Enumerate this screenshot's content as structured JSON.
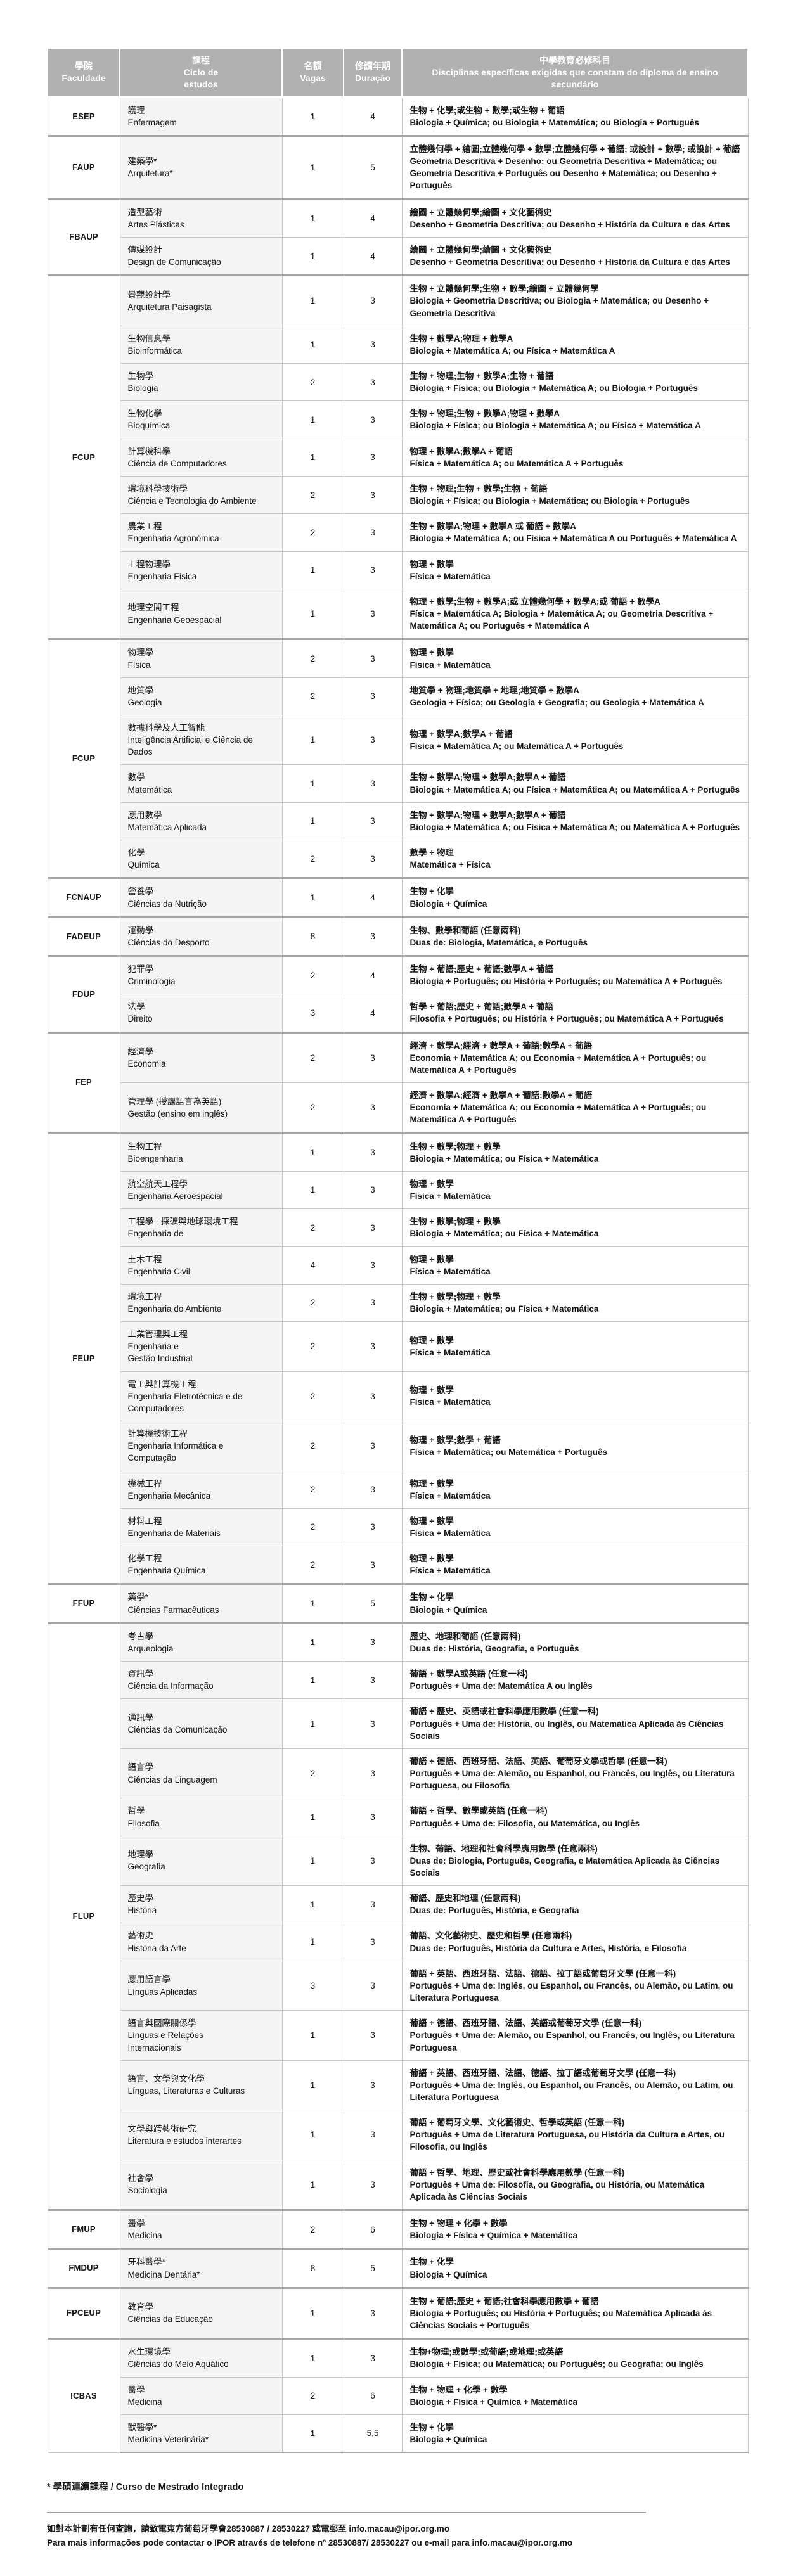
{
  "colors": {
    "header_bg": "#b1b1b1",
    "header_text": "#ffffff",
    "course_col_bg": "#f4f4f4",
    "row_border": "#c6c6c6",
    "group_border": "#a6a6a6"
  },
  "table": {
    "columns": [
      {
        "zh": "學院",
        "pt": "Faculdade"
      },
      {
        "zh": "課程",
        "pt": "Ciclo de\nestudos"
      },
      {
        "zh": "名額",
        "pt": "Vagas"
      },
      {
        "zh": "修讀年期",
        "pt": "Duração"
      },
      {
        "zh": "中學教育必修科目",
        "pt": "Disciplinas específicas exigidas que constam do diploma de ensino secundário"
      }
    ],
    "groups": [
      {
        "faculty": "ESEP",
        "rows": [
          {
            "zh": "護理",
            "pt": "Enfermagem",
            "vagas": "1",
            "dur": "4",
            "req_zh": "生物 + 化學;或生物 + 數學;或生物 + 葡語",
            "req_pt": "Biologia + Química; ou Biologia + Matemática; ou Biologia + Português"
          }
        ]
      },
      {
        "faculty": "FAUP",
        "rows": [
          {
            "zh": "建築學*",
            "pt": "Arquitetura*",
            "vagas": "1",
            "dur": "5",
            "req_zh": "立體幾何學 + 繪圖;立體幾何學 + 數學;立體幾何學 + 葡語; 或設計 + 數學; 或設計 + 葡語",
            "req_pt": "Geometria Descritiva + Desenho; ou Geometria Descritiva + Matemática; ou Geometria Descritiva + Português ou Desenho + Matemática; ou Desenho + Português"
          }
        ]
      },
      {
        "faculty": "FBAUP",
        "rows": [
          {
            "zh": "造型藝術",
            "pt": "Artes Plásticas",
            "vagas": "1",
            "dur": "4",
            "req_zh": "繪圖 + 立體幾何學;繪圖 + 文化藝術史",
            "req_pt": "Desenho + Geometria Descritiva; ou Desenho + História da Cultura e das Artes"
          },
          {
            "zh": "傳媒設計",
            "pt": "Design de Comunicação",
            "vagas": "1",
            "dur": "4",
            "req_zh": "繪圖 + 立體幾何學;繪圖 + 文化藝術史",
            "req_pt": "Desenho + Geometria Descritiva; ou Desenho + História da Cultura e das Artes"
          }
        ]
      },
      {
        "faculty": "FCUP",
        "rows": [
          {
            "zh": "景觀設計學",
            "pt": "Arquitetura Paisagista",
            "vagas": "1",
            "dur": "3",
            "req_zh": "生物 + 立體幾何學;生物 + 數學;繪圖 + 立體幾何學",
            "req_pt": "Biologia + Geometria Descritiva; ou Biologia + Matemática; ou Desenho + Geometria Descritiva"
          },
          {
            "zh": "生物信息學",
            "pt": "Bioinformática",
            "vagas": "1",
            "dur": "3",
            "req_zh": "生物 + 數學A;物理 + 數學A",
            "req_pt": "Biologia + Matemática A; ou Física + Matemática A"
          },
          {
            "zh": "生物學",
            "pt": "Biologia",
            "vagas": "2",
            "dur": "3",
            "req_zh": "生物 + 物理;生物 + 數學A;生物 + 葡語",
            "req_pt": "Biologia + Física; ou Biologia + Matemática A; ou Biologia + Português"
          },
          {
            "zh": "生物化學",
            "pt": "Bioquímica",
            "vagas": "1",
            "dur": "3",
            "req_zh": "生物 + 物理;生物 + 數學A;物理 + 數學A",
            "req_pt": "Biologia + Física; ou Biologia + Matemática A; ou Física + Matemática A"
          },
          {
            "zh": "計算機科學",
            "pt": "Ciência de Computadores",
            "vagas": "1",
            "dur": "3",
            "req_zh": "物理 + 數學A;數學A + 葡語",
            "req_pt": "Física + Matemática A; ou Matemática A + Português"
          },
          {
            "zh": "環境科學技術學",
            "pt": "Ciência e Tecnologia do Ambiente",
            "vagas": "2",
            "dur": "3",
            "req_zh": "生物 + 物理;生物 + 數學;生物 + 葡語",
            "req_pt": "Biologia + Física; ou Biologia + Matemática; ou Biologia + Português"
          },
          {
            "zh": "農業工程",
            "pt": "Engenharia Agronómica",
            "vagas": "2",
            "dur": "3",
            "req_zh": "生物 + 數學A;物理 + 數學A 或 葡語 + 數學A",
            "req_pt": "Biologia + Matemática A; ou Física + Matemática A ou Português + Matemática A"
          },
          {
            "zh": "工程物理學",
            "pt": "Engenharia Física",
            "vagas": "1",
            "dur": "3",
            "req_zh": "物理 + 數學",
            "req_pt": "Física + Matemática"
          },
          {
            "zh": "地理空間工程",
            "pt": "Engenharia Geoespacial",
            "vagas": "1",
            "dur": "3",
            "req_zh": "物理 + 數學;生物 + 數學A;或 立體幾何學 + 數學A;或 葡語 + 數學A",
            "req_pt": "Física + Matemática A; Biologia + Matemática A; ou Geometria Descritiva + Matemática A; ou Português + Matemática A"
          }
        ]
      },
      {
        "faculty": "FCUP",
        "rows": [
          {
            "zh": "物理學",
            "pt": "Física",
            "vagas": "2",
            "dur": "3",
            "req_zh": "物理 + 數學",
            "req_pt": "Física + Matemática"
          },
          {
            "zh": "地質學",
            "pt": "Geologia",
            "vagas": "2",
            "dur": "3",
            "req_zh": "地質學 + 物理;地質學 + 地理;地質學 + 數學A",
            "req_pt": "Geologia + Física; ou Geologia + Geografia; ou Geologia + Matemática A"
          },
          {
            "zh": "數據科學及人工智能",
            "pt": "Inteligência Artificial e Ciência de Dados",
            "vagas": "1",
            "dur": "3",
            "req_zh": "物理 + 數學A;數學A + 葡語",
            "req_pt": "Física + Matemática A; ou Matemática A + Português"
          },
          {
            "zh": "數學",
            "pt": "Matemática",
            "vagas": "1",
            "dur": "3",
            "req_zh": "生物 + 數學A;物理 + 數學A;數學A + 葡語",
            "req_pt": "Biologia + Matemática A; ou Física + Matemática A; ou  Matemática A + Português"
          },
          {
            "zh": "應用數學",
            "pt": "Matemática Aplicada",
            "vagas": "1",
            "dur": "3",
            "req_zh": "生物 + 數學A;物理 + 數學A;數學A + 葡語",
            "req_pt": "Biologia + Matemática A; ou Física + Matemática A; ou  Matemática A + Português"
          },
          {
            "zh": "化學",
            "pt": "Química",
            "vagas": "2",
            "dur": "3",
            "req_zh": "數學 + 物理",
            "req_pt": "Matemática + Física"
          }
        ]
      },
      {
        "faculty": "FCNAUP",
        "rows": [
          {
            "zh": "營養學",
            "pt": "Ciências da Nutrição",
            "vagas": "1",
            "dur": "4",
            "req_zh": "生物 + 化學",
            "req_pt": "Biologia + Química"
          }
        ]
      },
      {
        "faculty": "FADEUP",
        "rows": [
          {
            "zh": "運動學",
            "pt": "Ciências do Desporto",
            "vagas": "8",
            "dur": "3",
            "req_zh": "生物、數學和葡語 (任意兩科)",
            "req_pt": "Duas de: Biologia, Matemática, e Português"
          }
        ]
      },
      {
        "faculty": "FDUP",
        "rows": [
          {
            "zh": "犯罪學",
            "pt": "Criminologia",
            "vagas": "2",
            "dur": "4",
            "req_zh": "生物 + 葡語;歷史 + 葡語;數學A + 葡語",
            "req_pt": "Biologia + Português; ou História  + Português; ou Matemática A + Português"
          },
          {
            "zh": "法學",
            "pt": "Direito",
            "vagas": "3",
            "dur": "4",
            "req_zh": "哲學 + 葡語;歷史 + 葡語;數學A + 葡語",
            "req_pt": "Filosofia + Português; ou História + Português; ou Matemática A + Português"
          }
        ]
      },
      {
        "faculty": "FEP",
        "rows": [
          {
            "zh": "經濟學",
            "pt": "Economia",
            "vagas": "2",
            "dur": "3",
            "req_zh": "經濟 + 數學A;經濟 + 數學A + 葡語;數學A + 葡語",
            "req_pt": "Economia + Matemática A; ou Economia + Matemática A + Português; ou Matemática A + Português"
          },
          {
            "zh": "管理學 (授課語言為英語)",
            "pt": "Gestão (ensino em inglês)",
            "vagas": "2",
            "dur": "3",
            "req_zh": "經濟 + 數學A;經濟 + 數學A + 葡語;數學A + 葡語",
            "req_pt": "Economia + Matemática A; ou Economia + Matemática A + Português; ou Matemática A + Português"
          }
        ]
      },
      {
        "faculty": "FEUP",
        "rows": [
          {
            "zh": "生物工程",
            "pt": "Bioengenharia",
            "vagas": "1",
            "dur": "3",
            "req_zh": "生物 + 數學;物理 + 數學",
            "req_pt": "Biologia + Matemática; ou Física + Matemática"
          },
          {
            "zh": "航空航天工程學",
            "pt": "Engenharia Aeroespacial",
            "vagas": "1",
            "dur": "3",
            "req_zh": "物理 + 數學",
            "req_pt": "Física + Matemática"
          },
          {
            "zh": "工程學 - 採礦與地球環境工程",
            "pt": "Engenharia de",
            "vagas": "2",
            "dur": "3",
            "req_zh": "生物 + 數學;物理 + 數學",
            "req_pt": "Biologia + Matemática; ou Física + Matemática"
          },
          {
            "zh": "土木工程",
            "pt": "Engenharia Civil",
            "vagas": "4",
            "dur": "3",
            "req_zh": "物理 + 數學",
            "req_pt": "Física + Matemática"
          },
          {
            "zh": "環境工程",
            "pt": "Engenharia do Ambiente",
            "vagas": "2",
            "dur": "3",
            "req_zh": "生物 + 數學;物理 + 數學",
            "req_pt": "Biologia + Matemática; ou Física + Matemática"
          },
          {
            "zh": "工業管理與工程",
            "pt": "Engenharia e\nGestão Industrial",
            "vagas": "2",
            "dur": "3",
            "req_zh": "物理 + 數學",
            "req_pt": "Física + Matemática"
          },
          {
            "zh": "電工與計算機工程",
            "pt": "Engenharia Eletrotécnica e de Computadores",
            "vagas": "2",
            "dur": "3",
            "req_zh": "物理 + 數學",
            "req_pt": "Física + Matemática"
          },
          {
            "zh": "計算機技術工程",
            "pt": "Engenharia Informática e Computação",
            "vagas": "2",
            "dur": "3",
            "req_zh": "物理 + 數學;數學 + 葡語",
            "req_pt": "Física + Matemática; ou Matemática + Português"
          },
          {
            "zh": "機械工程",
            "pt": "Engenharia Mecânica",
            "vagas": "2",
            "dur": "3",
            "req_zh": "物理 + 數學",
            "req_pt": "Física + Matemática"
          },
          {
            "zh": "材料工程",
            "pt": "Engenharia de Materiais",
            "vagas": "2",
            "dur": "3",
            "req_zh": "物理 + 數學",
            "req_pt": "Física + Matemática"
          },
          {
            "zh": "化學工程",
            "pt": "Engenharia Química",
            "vagas": "2",
            "dur": "3",
            "req_zh": "物理 + 數學",
            "req_pt": "Física + Matemática"
          }
        ]
      },
      {
        "faculty": "FFUP",
        "rows": [
          {
            "zh": "藥學*",
            "pt": "Ciências Farmacêuticas",
            "vagas": "1",
            "dur": "5",
            "req_zh": "生物 + 化學",
            "req_pt": "Biologia + Química"
          }
        ]
      },
      {
        "faculty": "FLUP",
        "rows": [
          {
            "zh": "考古學",
            "pt": "Arqueologia",
            "vagas": "1",
            "dur": "3",
            "req_zh": "歷史、地理和葡語 (任意兩科)",
            "req_pt": "Duas de: História, Geografia, e Português"
          },
          {
            "zh": "資訊學",
            "pt": "Ciência da Informação",
            "vagas": "1",
            "dur": "3",
            "req_zh": "葡語 + 數學A或英語 (任意一科)",
            "req_pt": "Português + Uma de: Matemática A ou Inglês"
          },
          {
            "zh": "通訊學",
            "pt": "Ciências da Comunicação",
            "vagas": "1",
            "dur": "3",
            "req_zh": "葡語 + 歷史、英語或社會科學應用數學 (任意一科)",
            "req_pt": "Português + Uma de: História, ou Inglês, ou Matemática Aplicada às Ciências Sociais"
          },
          {
            "zh": "語言學",
            "pt": "Ciências da Linguagem",
            "vagas": "2",
            "dur": "3",
            "req_zh": "葡語 + 德語、西班牙語、法語、英語、葡萄牙文學或哲學 (任意一科)",
            "req_pt": "Português + Uma de: Alemão, ou Espanhol, ou Francês, ou Inglês, ou Literatura Portuguesa, ou Filosofia"
          },
          {
            "zh": "哲學",
            "pt": "Filosofia",
            "vagas": "1",
            "dur": "3",
            "req_zh": "葡語 + 哲學、數學或英語 (任意一科)",
            "req_pt": "Português + Uma de: Filosofia, ou Matemática, ou Inglês"
          },
          {
            "zh": "地理學",
            "pt": "Geografia",
            "vagas": "1",
            "dur": "3",
            "req_zh": "生物、葡語、地理和社會科學應用數學 (任意兩科)",
            "req_pt": "Duas de: Biologia, Português, Geografia, e Matemática Aplicada às Ciências Sociais"
          },
          {
            "zh": "歷史學",
            "pt": "História",
            "vagas": "1",
            "dur": "3",
            "req_zh": "葡語、歷史和地理 (任意兩科)",
            "req_pt": "Duas de: Português, História, e Geografia"
          },
          {
            "zh": "藝術史",
            "pt": "História da Arte",
            "vagas": "1",
            "dur": "3",
            "req_zh": "葡語、文化藝術史、歷史和哲學 (任意兩科)",
            "req_pt": "Duas de: Português, História da Cultura e Artes, História, e Filosofia"
          },
          {
            "zh": "應用語言學",
            "pt": "Línguas Aplicadas",
            "vagas": "3",
            "dur": "3",
            "req_zh": "葡語 + 英語、西班牙語、法語、德語、拉丁語或葡萄牙文學 (任意一科)",
            "req_pt": "Português + Uma de: Inglês, ou Espanhol, ou Francês, ou Alemão, ou Latim, ou Literatura Portuguesa"
          },
          {
            "zh": "語言與國際關係學",
            "pt": "Línguas e Relações\nInternacionais",
            "vagas": "1",
            "dur": "3",
            "req_zh": "葡語 + 德語、西班牙語、法語、英語或葡萄牙文學 (任意一科)",
            "req_pt": "Português + Uma de: Alemão, ou Espanhol, ou Francês, ou Inglês, ou Literatura Portuguesa"
          },
          {
            "zh": "語言、文學與文化學",
            "pt": "Línguas, Literaturas e Culturas",
            "vagas": "1",
            "dur": "3",
            "req_zh": "葡語 + 英語、西班牙語、法語、德語、拉丁語或葡萄牙文學 (任意一科)",
            "req_pt": "Português + Uma de: Inglês, ou Espanhol, ou Francês, ou Alemão, ou Latim, ou Literatura Portuguesa"
          },
          {
            "zh": "文學與跨藝術研究",
            "pt": "Literatura e estudos interartes",
            "vagas": "1",
            "dur": "3",
            "req_zh": "葡語 + 葡萄牙文學、文化藝術史、哲學或英語 (任意一科)",
            "req_pt": "Português + Uma de Literatura Portuguesa, ou História da Cultura e Artes, ou Filosofia, ou Inglês"
          },
          {
            "zh": "社會學",
            "pt": "Sociologia",
            "vagas": "1",
            "dur": "3",
            "req_zh": "葡語 + 哲學、地理、歷史或社會科學應用數學 (任意一科)",
            "req_pt": "Português + Uma de: Filosofia, ou Geografia, ou História, ou Matemática Aplicada às Ciências Sociais"
          }
        ]
      },
      {
        "faculty": "FMUP",
        "rows": [
          {
            "zh": "醫學",
            "pt": "Medicina",
            "vagas": "2",
            "dur": "6",
            "req_zh": "生物 + 物理 + 化學 + 數學",
            "req_pt": "Biologia + Física + Química + Matemática"
          }
        ]
      },
      {
        "faculty": "FMDUP",
        "rows": [
          {
            "zh": "牙科醫學*",
            "pt": "Medicina Dentária*",
            "vagas": "8",
            "dur": "5",
            "req_zh": "生物 + 化學",
            "req_pt": "Biologia + Química"
          }
        ]
      },
      {
        "faculty": "FPCEUP",
        "rows": [
          {
            "zh": "教育學",
            "pt": "Ciências da Educação",
            "vagas": "1",
            "dur": "3",
            "req_zh": "生物 + 葡語;歷史 + 葡語;社會科學應用數學 + 葡語",
            "req_pt": "Biologia + Português; ou História + Português; ou Matemática Aplicada às Ciências Sociais + Português"
          }
        ]
      },
      {
        "faculty": "ICBAS",
        "rows": [
          {
            "zh": "水生環境學",
            "pt": "Ciências do Meio Aquático",
            "vagas": "1",
            "dur": "3",
            "req_zh": "生物+物理;或數學;或葡語;或地理;或英語",
            "req_pt": "Biologia + Física; ou Matemática; ou Português; ou Geografia; ou Inglês"
          },
          {
            "zh": "醫學",
            "pt": "Medicina",
            "vagas": "2",
            "dur": "6",
            "req_zh": "生物 + 物理 + 化學 + 數學",
            "req_pt": "Biologia + Física + Química + Matemática"
          },
          {
            "zh": "獸醫學*",
            "pt": "Medicina Veterinária*",
            "vagas": "1",
            "dur": "5,5",
            "req_zh": "生物 + 化學",
            "req_pt": "Biologia + Química"
          }
        ]
      }
    ]
  },
  "footer": {
    "footnote": "* 學碩連續課程 / Curso de Mestrado Integrado",
    "contact_zh": "如對本計劃有任何查詢，請致電東方葡萄牙學會28530887 / 28530227 或電郵至 info.macau@ipor.org.mo",
    "contact_pt": "Para mais informações pode contactar o IPOR através de telefone nº 28530887/ 28530227 ou e-mail para info.macau@ipor.org.mo"
  }
}
